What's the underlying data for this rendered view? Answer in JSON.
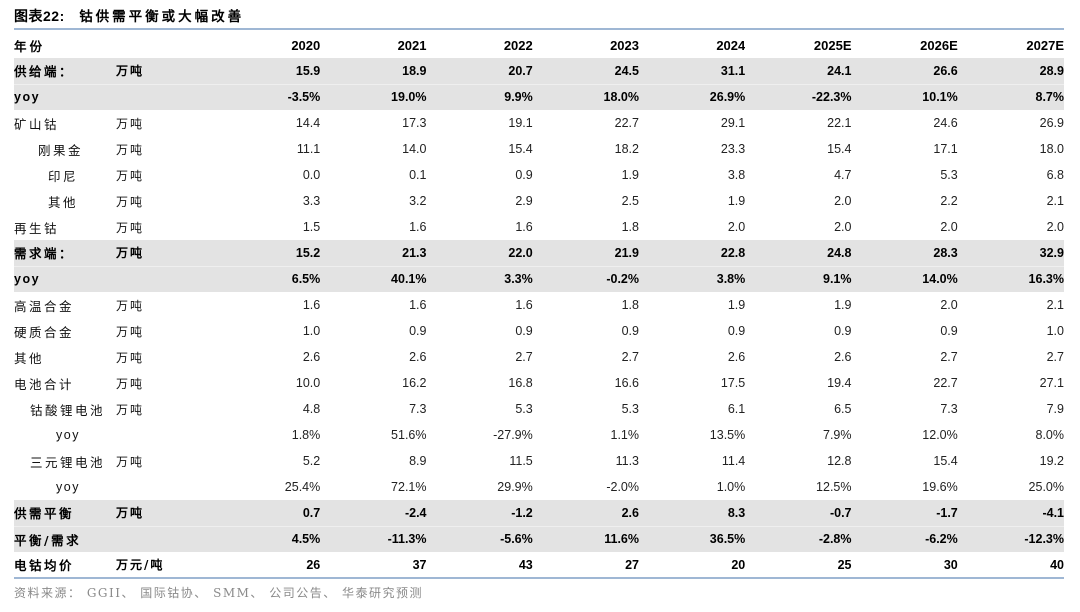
{
  "title": {
    "prefix": "图表22:",
    "text": "钴供需平衡或大幅改善"
  },
  "source": "资料来源： GGII、 国际钴协、 SMM、 公司公告、 华泰研究预测",
  "colors": {
    "divider_blue": "#9fb7d4",
    "highlight_grey": "#e3e3e3",
    "source_grey": "#8a8a8a"
  },
  "table": {
    "header": {
      "label": "年份",
      "unit": "",
      "years": [
        "2020",
        "2021",
        "2022",
        "2023",
        "2024",
        "2025E",
        "2026E",
        "2027E"
      ]
    },
    "rows": [
      {
        "label": "供给端：",
        "unit": "万吨",
        "style": "highlight",
        "indent": 0,
        "values": [
          "15.9",
          "18.9",
          "20.7",
          "24.5",
          "31.1",
          "24.1",
          "26.6",
          "28.9"
        ]
      },
      {
        "label": "yoy",
        "unit": "",
        "style": "highlight",
        "indent": 0,
        "latin": true,
        "values": [
          "-3.5%",
          "19.0%",
          "9.9%",
          "18.0%",
          "26.9%",
          "-22.3%",
          "10.1%",
          "8.7%"
        ]
      },
      {
        "label": "矿山钴",
        "unit": "万吨",
        "style": "normal",
        "indent": 0,
        "values": [
          "14.4",
          "17.3",
          "19.1",
          "22.7",
          "29.1",
          "22.1",
          "24.6",
          "26.9"
        ]
      },
      {
        "label": "刚果金",
        "unit": "万吨",
        "style": "normal",
        "indent": 2,
        "values": [
          "11.1",
          "14.0",
          "15.4",
          "18.2",
          "23.3",
          "15.4",
          "17.1",
          "18.0"
        ]
      },
      {
        "label": "印尼",
        "unit": "万吨",
        "style": "normal",
        "indent": 3,
        "values": [
          "0.0",
          "0.1",
          "0.9",
          "1.9",
          "3.8",
          "4.7",
          "5.3",
          "6.8"
        ]
      },
      {
        "label": "其他",
        "unit": "万吨",
        "style": "normal",
        "indent": 3,
        "values": [
          "3.3",
          "3.2",
          "2.9",
          "2.5",
          "1.9",
          "2.0",
          "2.2",
          "2.1"
        ]
      },
      {
        "label": "再生钴",
        "unit": "万吨",
        "style": "normal",
        "indent": 0,
        "values": [
          "1.5",
          "1.6",
          "1.6",
          "1.8",
          "2.0",
          "2.0",
          "2.0",
          "2.0"
        ]
      },
      {
        "label": "需求端：",
        "unit": "万吨",
        "style": "highlight",
        "indent": 0,
        "values": [
          "15.2",
          "21.3",
          "22.0",
          "21.9",
          "22.8",
          "24.8",
          "28.3",
          "32.9"
        ]
      },
      {
        "label": "yoy",
        "unit": "",
        "style": "highlight",
        "indent": 0,
        "latin": true,
        "values": [
          "6.5%",
          "40.1%",
          "3.3%",
          "-0.2%",
          "3.8%",
          "9.1%",
          "14.0%",
          "16.3%"
        ]
      },
      {
        "label": "高温合金",
        "unit": "万吨",
        "style": "normal",
        "indent": 0,
        "values": [
          "1.6",
          "1.6",
          "1.6",
          "1.8",
          "1.9",
          "1.9",
          "2.0",
          "2.1"
        ]
      },
      {
        "label": "硬质合金",
        "unit": "万吨",
        "style": "normal",
        "indent": 0,
        "values": [
          "1.0",
          "0.9",
          "0.9",
          "0.9",
          "0.9",
          "0.9",
          "0.9",
          "1.0"
        ]
      },
      {
        "label": "其他",
        "unit": "万吨",
        "style": "normal",
        "indent": 0,
        "values": [
          "2.6",
          "2.6",
          "2.7",
          "2.7",
          "2.6",
          "2.6",
          "2.7",
          "2.7"
        ]
      },
      {
        "label": "电池合计",
        "unit": "万吨",
        "style": "normal",
        "indent": 0,
        "values": [
          "10.0",
          "16.2",
          "16.8",
          "16.6",
          "17.5",
          "19.4",
          "22.7",
          "27.1"
        ]
      },
      {
        "label": "钴酸锂电池",
        "unit": "万吨",
        "style": "normal",
        "indent": 1,
        "values": [
          "4.8",
          "7.3",
          "5.3",
          "5.3",
          "6.1",
          "6.5",
          "7.3",
          "7.9"
        ]
      },
      {
        "label": "yoy",
        "unit": "",
        "style": "normal",
        "indent": 4,
        "latin": true,
        "values": [
          "1.8%",
          "51.6%",
          "-27.9%",
          "1.1%",
          "13.5%",
          "7.9%",
          "12.0%",
          "8.0%"
        ]
      },
      {
        "label": "三元锂电池",
        "unit": "万吨",
        "style": "normal",
        "indent": 1,
        "values": [
          "5.2",
          "8.9",
          "11.5",
          "11.3",
          "11.4",
          "12.8",
          "15.4",
          "19.2"
        ]
      },
      {
        "label": "yoy",
        "unit": "",
        "style": "normal",
        "indent": 4,
        "latin": true,
        "values": [
          "25.4%",
          "72.1%",
          "29.9%",
          "-2.0%",
          "1.0%",
          "12.5%",
          "19.6%",
          "25.0%"
        ]
      },
      {
        "label": "供需平衡",
        "unit": "万吨",
        "style": "highlight",
        "indent": 0,
        "values": [
          "0.7",
          "-2.4",
          "-1.2",
          "2.6",
          "8.3",
          "-0.7",
          "-1.7",
          "-4.1"
        ]
      },
      {
        "label": "平衡/需求",
        "unit": "",
        "style": "highlight",
        "indent": 0,
        "values": [
          "4.5%",
          "-11.3%",
          "-5.6%",
          "11.6%",
          "36.5%",
          "-2.8%",
          "-6.2%",
          "-12.3%"
        ]
      },
      {
        "label": "电钴均价",
        "unit": "万元/吨",
        "style": "bold",
        "indent": 0,
        "values": [
          "26",
          "37",
          "43",
          "27",
          "20",
          "25",
          "30",
          "40"
        ]
      }
    ]
  }
}
